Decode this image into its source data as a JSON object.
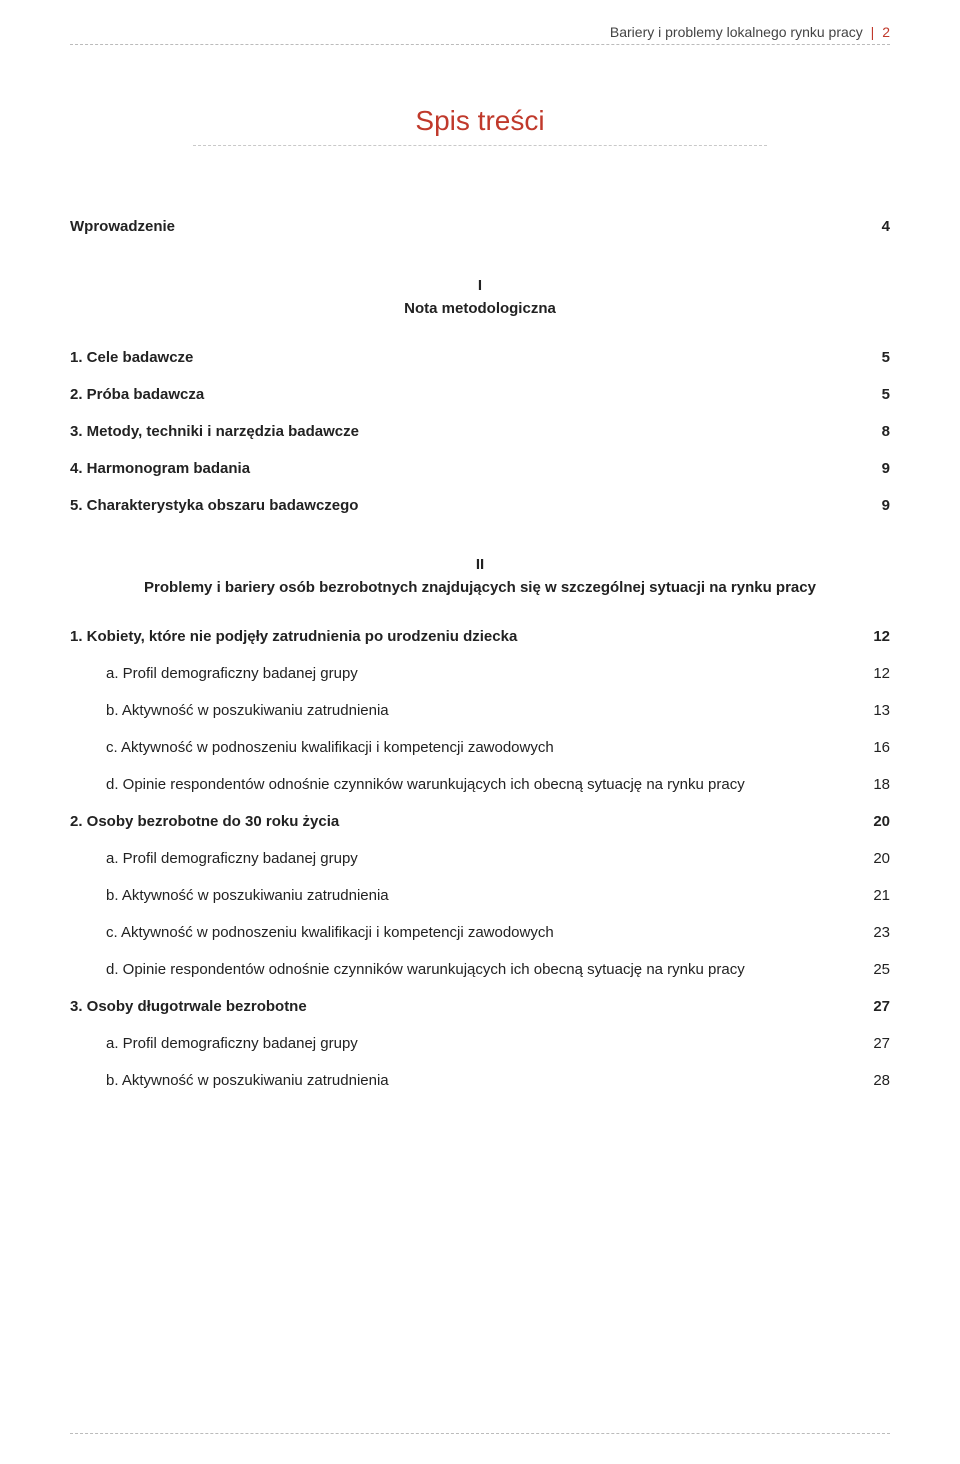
{
  "colors": {
    "accent": "#c0392b",
    "text": "#222222",
    "rule": "#bbbbbb",
    "background": "#ffffff"
  },
  "typography": {
    "body_fontsize_pt": 11,
    "title_fontsize_pt": 21,
    "font_family": "Segoe UI / Helvetica-like sans-serif"
  },
  "running_header": {
    "text": "Bariery i problemy lokalnego rynku pracy",
    "separator": "|",
    "page_number": "2"
  },
  "title": "Spis treści",
  "entries": [
    {
      "level": 0,
      "bold": true,
      "label": "Wprowadzenie",
      "page": "4",
      "gap": "lg"
    },
    {
      "section_roman": "I",
      "section_title": "Nota metodologiczna"
    },
    {
      "level": 0,
      "bold": true,
      "label": "1.   Cele badawcze",
      "page": "5",
      "gap": "lg"
    },
    {
      "level": 0,
      "bold": true,
      "label": "2.   Próba badawcza",
      "page": "5",
      "gap": "md"
    },
    {
      "level": 0,
      "bold": true,
      "label": "3.   Metody, techniki i narzędzia badawcze",
      "page": "8",
      "gap": "md"
    },
    {
      "level": 0,
      "bold": true,
      "label": "4.   Harmonogram badania",
      "page": "9",
      "gap": "md"
    },
    {
      "level": 0,
      "bold": true,
      "label": "5.   Charakterystyka obszaru badawczego",
      "page": "9",
      "gap": "md"
    },
    {
      "section_roman": "II",
      "section_title": "Problemy i bariery osób bezrobotnych znajdujących się w szczególnej sytuacji na rynku pracy"
    },
    {
      "level": 0,
      "bold": true,
      "label": "1.   Kobiety, które nie podjęły zatrudnienia po urodzeniu dziecka",
      "page": "12",
      "gap": "lg"
    },
    {
      "level": 1,
      "bold": false,
      "label": "a.   Profil demograficzny badanej grupy",
      "page": "12",
      "gap": "md"
    },
    {
      "level": 1,
      "bold": false,
      "label": "b.   Aktywność w poszukiwaniu zatrudnienia",
      "page": "13",
      "gap": "md"
    },
    {
      "level": 1,
      "bold": false,
      "label": "c.   Aktywność w podnoszeniu kwalifikacji i kompetencji zawodowych",
      "page": "16",
      "gap": "md"
    },
    {
      "level": 1,
      "bold": false,
      "label": "d.   Opinie respondentów odnośnie czynników warunkujących ich obecną sytuację na rynku pracy",
      "page": "18",
      "gap": "md"
    },
    {
      "level": 0,
      "bold": true,
      "label": "2.   Osoby bezrobotne do 30 roku życia",
      "page": "20",
      "gap": "md"
    },
    {
      "level": 1,
      "bold": false,
      "label": "a.   Profil demograficzny badanej grupy",
      "page": "20",
      "gap": "md"
    },
    {
      "level": 1,
      "bold": false,
      "label": "b.   Aktywność w poszukiwaniu zatrudnienia",
      "page": "21",
      "gap": "md"
    },
    {
      "level": 1,
      "bold": false,
      "label": "c.   Aktywność w podnoszeniu kwalifikacji i kompetencji zawodowych",
      "page": "23",
      "gap": "md"
    },
    {
      "level": 1,
      "bold": false,
      "label": "d.   Opinie respondentów odnośnie czynników warunkujących ich obecną sytuację na rynku pracy",
      "page": "25",
      "gap": "md"
    },
    {
      "level": 0,
      "bold": true,
      "label": "3.   Osoby długotrwale bezrobotne",
      "page": "27",
      "gap": "md"
    },
    {
      "level": 1,
      "bold": false,
      "label": "a.   Profil demograficzny badanej grupy",
      "page": "27",
      "gap": "md"
    },
    {
      "level": 1,
      "bold": false,
      "label": "b.   Aktywność w poszukiwaniu zatrudnienia",
      "page": "28",
      "gap": "md"
    }
  ]
}
